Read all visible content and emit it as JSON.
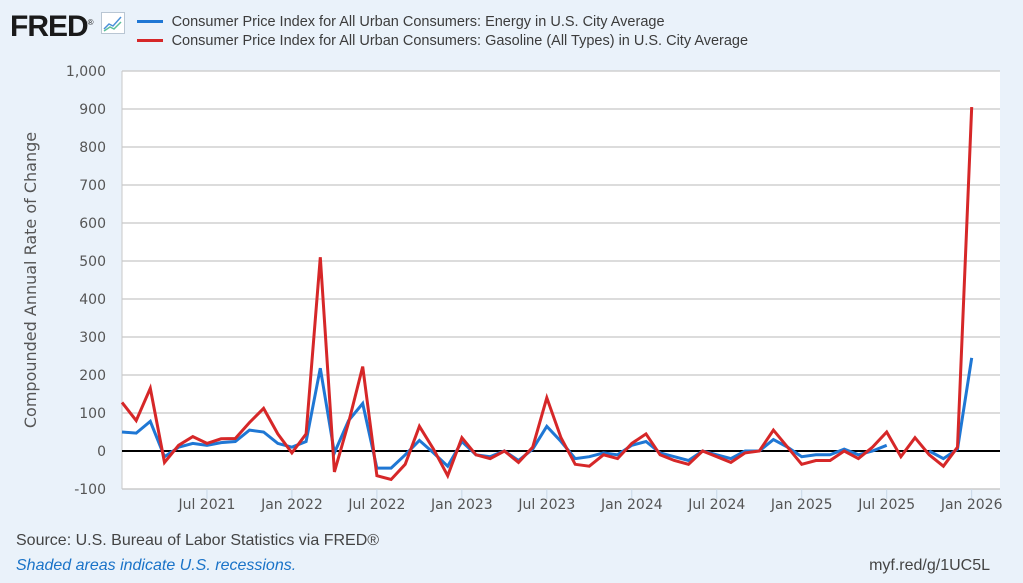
{
  "header": {
    "logo": "FRED",
    "logo_mark": "®",
    "icon": "line-chart-icon"
  },
  "footer": {
    "source": "Source: U.S. Bureau of Labor Statistics via FRED®",
    "note": "Shaded areas indicate U.S. recessions.",
    "link": "myf.red/g/1UC5L"
  },
  "chart_data": {
    "type": "line",
    "title": "",
    "xlabel": "",
    "ylabel": "Compounded Annual Rate of Change",
    "ylim": [
      -100,
      1000
    ],
    "yticks": [
      -100,
      0,
      100,
      200,
      300,
      400,
      500,
      600,
      700,
      800,
      900,
      1000
    ],
    "ytick_labels": [
      "-100",
      "0",
      "100",
      "200",
      "300",
      "400",
      "500",
      "600",
      "700",
      "800",
      "900",
      "1,000"
    ],
    "xrange": [
      "2021-01",
      "2026-03"
    ],
    "xticks": [
      {
        "month": "2021-07",
        "label": "Jul 2021"
      },
      {
        "month": "2022-01",
        "label": "Jan 2022"
      },
      {
        "month": "2022-07",
        "label": "Jul 2022"
      },
      {
        "month": "2023-01",
        "label": "Jan 2023"
      },
      {
        "month": "2023-07",
        "label": "Jul 2023"
      },
      {
        "month": "2024-01",
        "label": "Jan 2024"
      },
      {
        "month": "2024-07",
        "label": "Jul 2024"
      },
      {
        "month": "2025-01",
        "label": "Jan 2025"
      },
      {
        "month": "2025-07",
        "label": "Jul 2025"
      },
      {
        "month": "2026-01",
        "label": "Jan 2026"
      }
    ],
    "grid": true,
    "legend_position": "top",
    "x": [
      "2021-01",
      "2021-02",
      "2021-03",
      "2021-04",
      "2021-05",
      "2021-06",
      "2021-07",
      "2021-08",
      "2021-09",
      "2021-10",
      "2021-11",
      "2021-12",
      "2022-01",
      "2022-02",
      "2022-03",
      "2022-04",
      "2022-05",
      "2022-06",
      "2022-07",
      "2022-08",
      "2022-09",
      "2022-10",
      "2022-11",
      "2022-12",
      "2023-01",
      "2023-02",
      "2023-03",
      "2023-04",
      "2023-05",
      "2023-06",
      "2023-07",
      "2023-08",
      "2023-09",
      "2023-10",
      "2023-11",
      "2023-12",
      "2024-01",
      "2024-02",
      "2024-03",
      "2024-04",
      "2024-05",
      "2024-06",
      "2024-07",
      "2024-08",
      "2024-09",
      "2024-10",
      "2024-11",
      "2024-12",
      "2025-01",
      "2025-02",
      "2025-03",
      "2025-04",
      "2025-05",
      "2025-06",
      "2025-07",
      "2025-08",
      "2025-09",
      "2025-10",
      "2025-11",
      "2025-12",
      "2026-01",
      "2026-02",
      "2026-03"
    ],
    "series": [
      {
        "name": "Consumer Price Index for All Urban Consumers: Energy in U.S. City Average",
        "color": "#1f77d4",
        "values": [
          50,
          47,
          78,
          -15,
          10,
          20,
          15,
          22,
          25,
          55,
          50,
          20,
          10,
          25,
          218,
          -5,
          80,
          125,
          -45,
          -45,
          -10,
          28,
          -5,
          -40,
          25,
          -10,
          -15,
          0,
          -25,
          5,
          65,
          25,
          -20,
          -15,
          -5,
          -10,
          15,
          25,
          -5,
          -15,
          -25,
          0,
          -10,
          -20,
          0,
          0,
          30,
          10,
          -15,
          -10,
          -10,
          5,
          -10,
          0,
          15,
          null,
          null,
          0,
          -20,
          5,
          245,
          null,
          null
        ]
      },
      {
        "name": "Consumer Price Index for All Urban Consumers: Gasoline (All Types) in U.S. City Average",
        "color": "#d62728",
        "values": [
          128,
          80,
          165,
          -30,
          15,
          38,
          20,
          32,
          33,
          75,
          112,
          45,
          -5,
          45,
          510,
          -55,
          75,
          222,
          -65,
          -75,
          -35,
          65,
          5,
          -65,
          35,
          -10,
          -20,
          0,
          -30,
          10,
          140,
          35,
          -35,
          -40,
          -10,
          -20,
          20,
          45,
          -10,
          -25,
          -35,
          0,
          -15,
          -30,
          -5,
          0,
          55,
          10,
          -35,
          -25,
          -25,
          0,
          -20,
          10,
          50,
          -15,
          35,
          -10,
          -40,
          10,
          905,
          null,
          null
        ]
      }
    ]
  }
}
